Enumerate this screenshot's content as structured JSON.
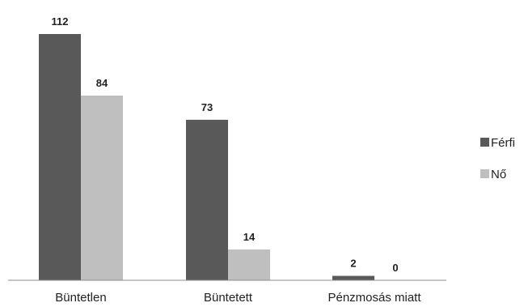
{
  "chart_data": {
    "type": "bar",
    "categories": [
      "Büntetlen",
      "Büntetett",
      "Pénzmosás miatt"
    ],
    "series": [
      {
        "name": "Férfi",
        "values": [
          112,
          73,
          2
        ],
        "color": "#595959"
      },
      {
        "name": "Nő",
        "values": [
          84,
          14,
          0
        ],
        "color": "#bfbfbf"
      }
    ],
    "ylim": [
      0,
      112
    ],
    "grid": false,
    "show_data_labels": true,
    "legend_position": "right"
  }
}
